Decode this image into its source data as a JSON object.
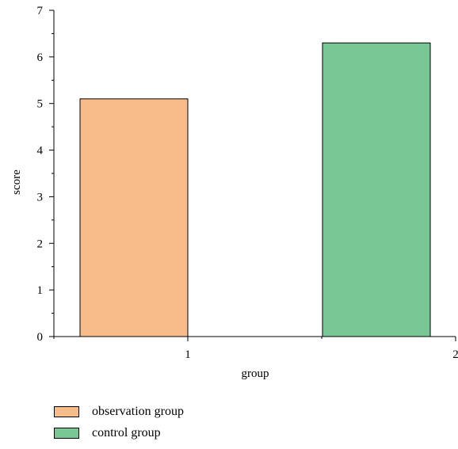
{
  "chart_data": {
    "type": "bar",
    "categories": [
      "1",
      "2"
    ],
    "series": [
      {
        "name": "observation group",
        "x": 1,
        "value": 5.1,
        "color": "#f8bb8a"
      },
      {
        "name": "control group",
        "x": 2,
        "value": 6.3,
        "color": "#79c795"
      }
    ],
    "xlabel": "group",
    "ylabel": "score",
    "ylim": [
      0,
      7
    ],
    "yticks": [
      "0",
      "1",
      "2",
      "3",
      "4",
      "5",
      "6",
      "7"
    ],
    "xticks": [
      "1",
      "2"
    ],
    "grid": false,
    "legend_position": "bottom-left"
  }
}
